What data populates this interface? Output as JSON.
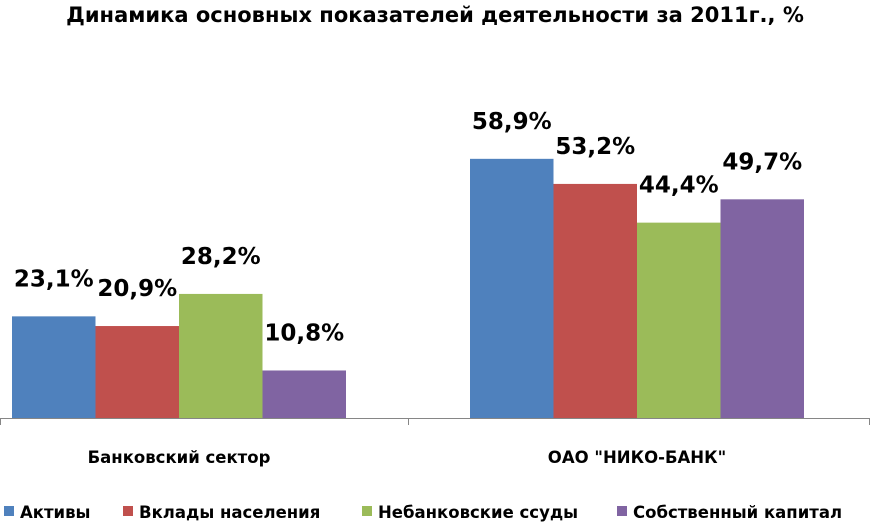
{
  "chart_data": {
    "type": "bar",
    "title": "Динамика основных показателей деятельности за 2011г., %",
    "categories": [
      "Банковский сектор",
      "ОАО \"НИКО-БАНК\""
    ],
    "series": [
      {
        "name": "Активы",
        "color": "#4F81BD",
        "values": [
          23.1,
          58.9
        ],
        "labels": [
          "23,1%",
          "58,9%"
        ]
      },
      {
        "name": "Вклады населения",
        "color": "#C0504D",
        "values": [
          20.9,
          53.2
        ],
        "labels": [
          "20,9%",
          "53,2%"
        ]
      },
      {
        "name": "Небанковские ссуды",
        "color": "#9BBB59",
        "values": [
          28.2,
          44.4
        ],
        "labels": [
          "28,2%",
          "44,4%"
        ]
      },
      {
        "name": "Собственный капитал",
        "color": "#8064A2",
        "values": [
          10.8,
          49.7
        ],
        "labels": [
          "10,8%",
          "49,7%"
        ]
      }
    ],
    "ylim": [
      0,
      70
    ],
    "grid": false,
    "legend": "bottom"
  }
}
